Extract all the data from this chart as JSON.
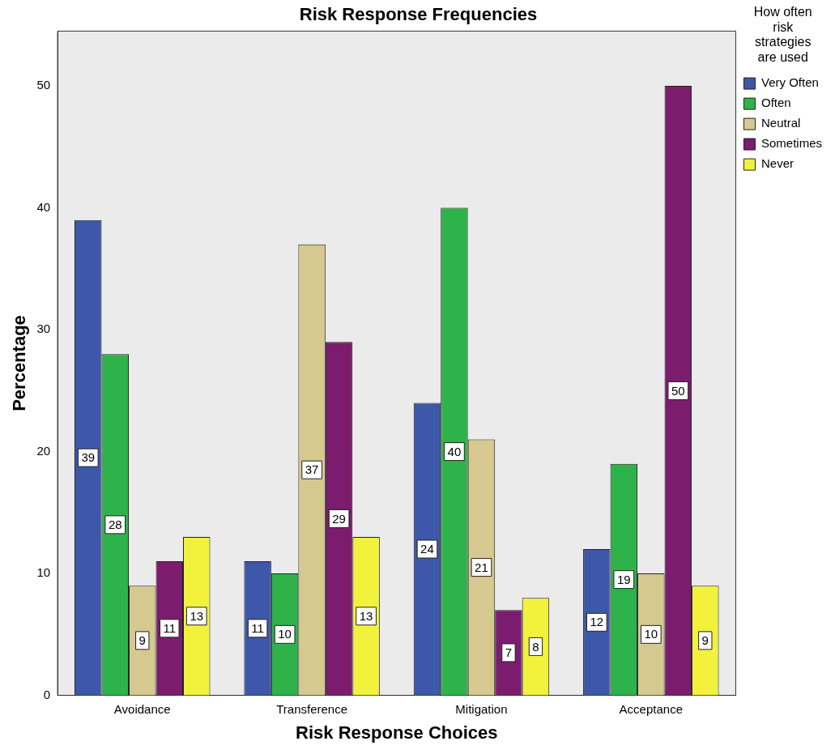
{
  "chart_data": {
    "type": "bar",
    "title": "Risk Response Frequencies",
    "xlabel": "Risk Response Choices",
    "ylabel": "Percentage",
    "legend_title": "How often risk strategies are used",
    "categories": [
      "Avoidance",
      "Transference",
      "Mitigation",
      "Acceptance"
    ],
    "series": [
      {
        "name": "Very Often",
        "color": "#3d58a8",
        "values": [
          39,
          11,
          24,
          12
        ]
      },
      {
        "name": "Often",
        "color": "#2db34a",
        "values": [
          28,
          10,
          40,
          19
        ]
      },
      {
        "name": "Neutral",
        "color": "#d5c98f",
        "values": [
          9,
          37,
          21,
          10
        ]
      },
      {
        "name": "Sometimes",
        "color": "#7b1c6e",
        "values": [
          11,
          29,
          7,
          50
        ]
      },
      {
        "name": "Never",
        "color": "#f2f23c",
        "values": [
          13,
          13,
          8,
          9
        ]
      }
    ],
    "ylim": [
      0,
      54.5
    ],
    "yticks": [
      0,
      10,
      20,
      30,
      40,
      50
    ],
    "grid": false,
    "legend": "top right",
    "data_labels": true
  }
}
